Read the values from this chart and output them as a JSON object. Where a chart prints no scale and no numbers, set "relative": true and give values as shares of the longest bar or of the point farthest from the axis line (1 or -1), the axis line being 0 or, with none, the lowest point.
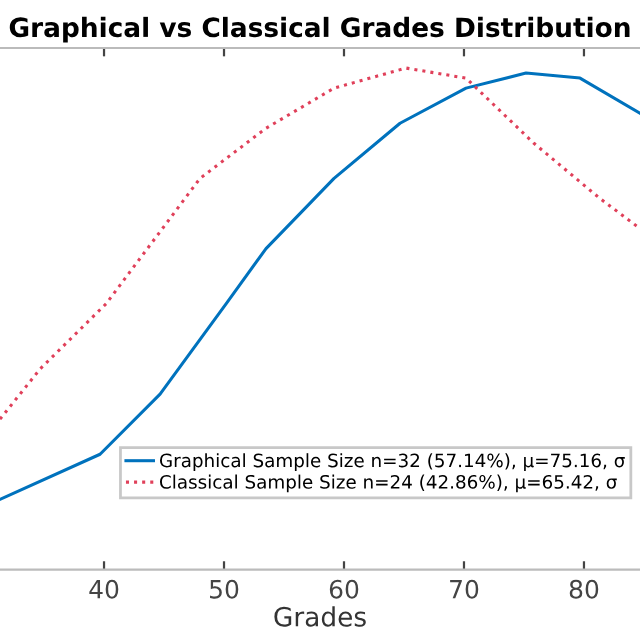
{
  "chart_data": {
    "type": "line",
    "title": "Graphical vs Classical Grades Distribution",
    "xlabel": "Grades",
    "relative": true,
    "xlim": [
      31.33,
      84.67
    ],
    "xticks": [
      40,
      50,
      60,
      70,
      80
    ],
    "legend": "bottom right",
    "grid": false,
    "series": [
      {
        "name": "Graphical Sample Size n=32 (57.14%), μ=75.16, σ",
        "color": "#0072bd",
        "line_style": "solid",
        "x": [
          31.33,
          39.67,
          44.67,
          50.17,
          53.5,
          59.17,
          64.67,
          70.17,
          75.17,
          79.67,
          84.67
        ],
        "values": [
          0.14,
          0.23,
          0.35,
          0.53,
          0.64,
          0.78,
          0.89,
          0.96,
          0.99,
          0.98,
          0.91
        ]
      },
      {
        "name": "Classical Sample Size n=24 (42.86%), μ=65.42, σ",
        "color": "#e0405a",
        "line_style": "dotted",
        "x": [
          31.33,
          34.67,
          40.17,
          48,
          53.5,
          59.17,
          65.17,
          70.17,
          75.83,
          81.33,
          84.67
        ],
        "values": [
          0.3,
          0.4,
          0.53,
          0.78,
          0.88,
          0.96,
          1.0,
          0.98,
          0.85,
          0.74,
          0.68
        ]
      }
    ]
  }
}
